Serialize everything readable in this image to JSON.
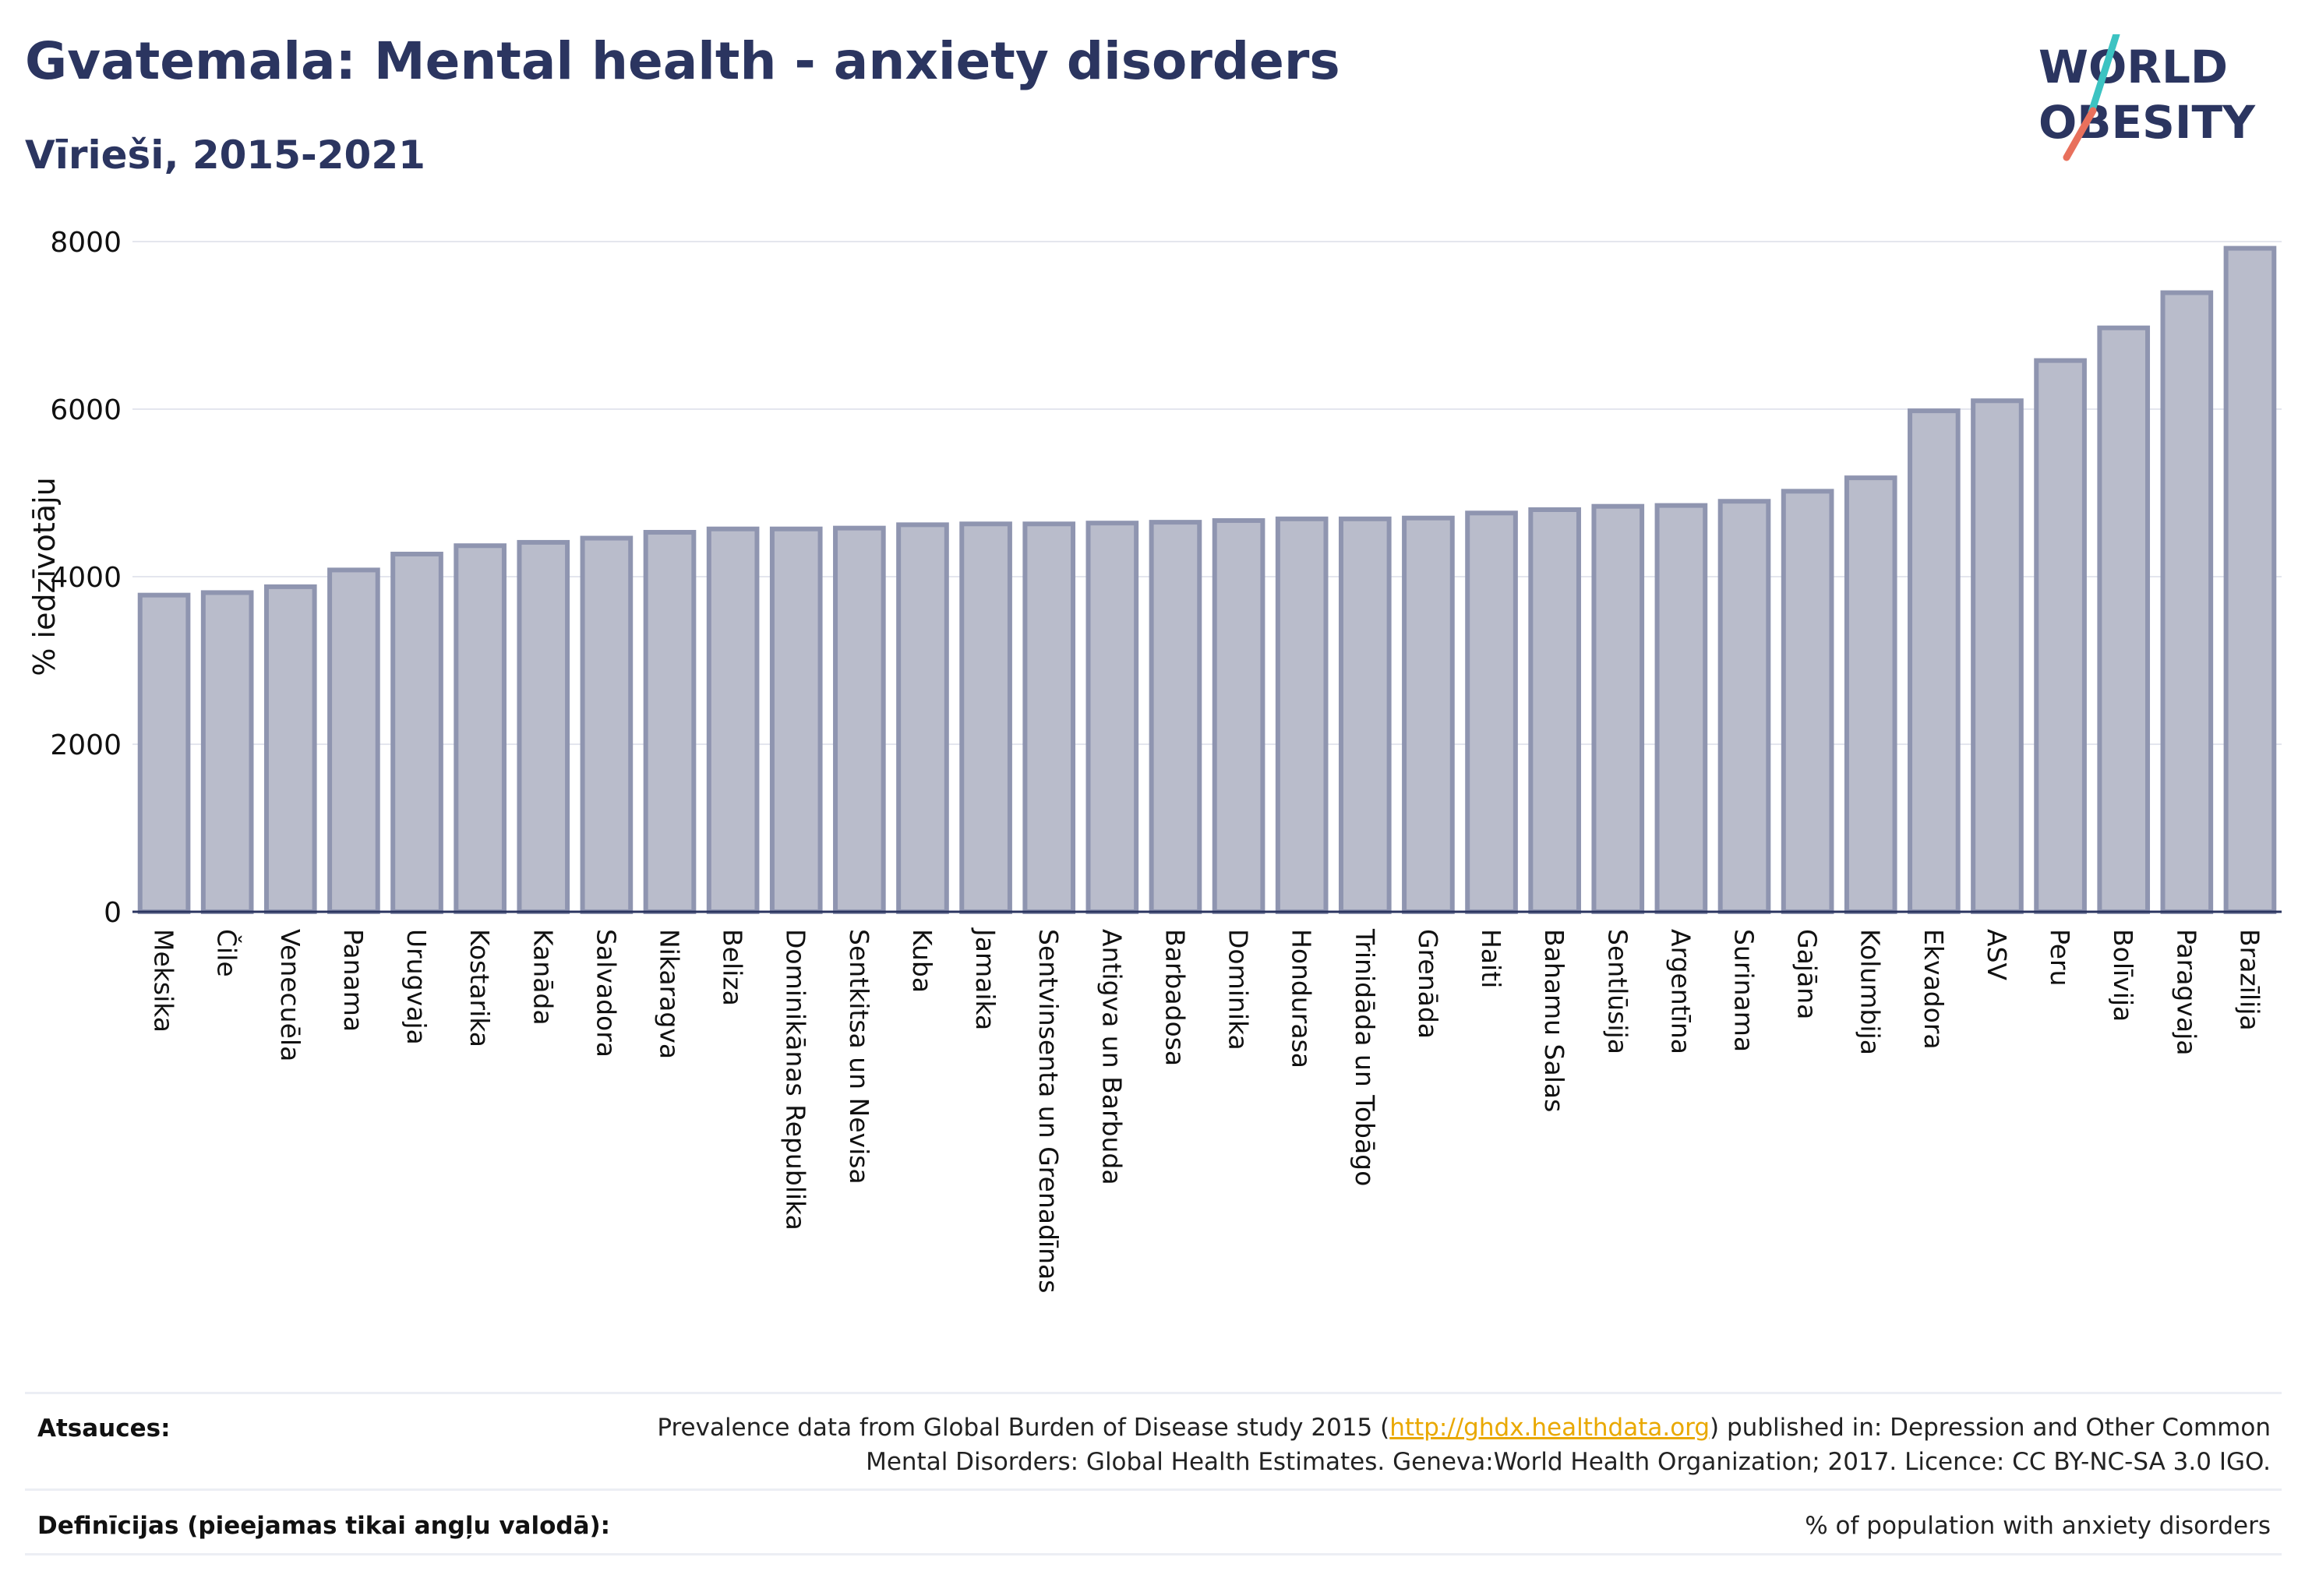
{
  "header": {
    "title": "Gvatemala: Mental health - anxiety disorders",
    "subtitle": "Vīrieši, 2015-2021"
  },
  "logo": {
    "line1": "WORLD",
    "line2": "OBESITY",
    "colors": {
      "text": "#2b3560",
      "slash_teal": "#3cc3c2",
      "slash_coral": "#e8705c"
    }
  },
  "chart_data": {
    "type": "bar",
    "title": "Gvatemala: Mental health - anxiety disorders",
    "subtitle": "Vīrieši, 2015-2021",
    "ylabel": "% iedzīvotāju",
    "xlabel": "",
    "ylim": [
      0,
      8000
    ],
    "yticks": [
      0,
      2000,
      4000,
      6000,
      8000
    ],
    "grid": true,
    "bar_color": "#b9bccb",
    "bar_edge_color": "#8f95b0",
    "categories": [
      "Meksika",
      "Čile",
      "Venecuēla",
      "Panama",
      "Urugvaja",
      "Kostarika",
      "Kanāda",
      "Salvadora",
      "Nikaragva",
      "Beliza",
      "Dominikānas Republika",
      "Sentkitsa un Nevisa",
      "Kuba",
      "Jamaika",
      "Sentvinsenta un Grenadīnas",
      "Antigva un Barbuda",
      "Barbadosa",
      "Dominika",
      "Hondurasa",
      "Trinidāda un Tobāgo",
      "Grenāda",
      "Haiti",
      "Bahamu Salas",
      "Sentlūsija",
      "Argentīna",
      "Surinama",
      "Gajāna",
      "Kolumbija",
      "Ekvadora",
      "ASV",
      "Peru",
      "Bolīvija",
      "Paragvaja",
      "Brazīlija"
    ],
    "values": [
      3780,
      3810,
      3880,
      4080,
      4270,
      4370,
      4410,
      4460,
      4530,
      4570,
      4570,
      4580,
      4620,
      4630,
      4630,
      4640,
      4650,
      4670,
      4690,
      4690,
      4700,
      4760,
      4800,
      4840,
      4850,
      4900,
      5020,
      5180,
      5980,
      6100,
      6580,
      6970,
      7390,
      7920
    ]
  },
  "footer": {
    "sources_label": "Atsauces:",
    "sources_text_before": "Prevalence data from Global Burden of Disease study 2015 (",
    "sources_link": "http://ghdx.healthdata.org",
    "sources_text_after": ") published in: Depression and Other Common",
    "sources_text_line2": "Mental Disorders: Global Health Estimates. Geneva:World Health Organization; 2017. Licence: CC BY-NC-SA 3.0 IGO.",
    "definitions_label": "Definīcijas (pieejamas tikai angļu valodā):",
    "definitions_text": "% of population with anxiety disorders"
  }
}
